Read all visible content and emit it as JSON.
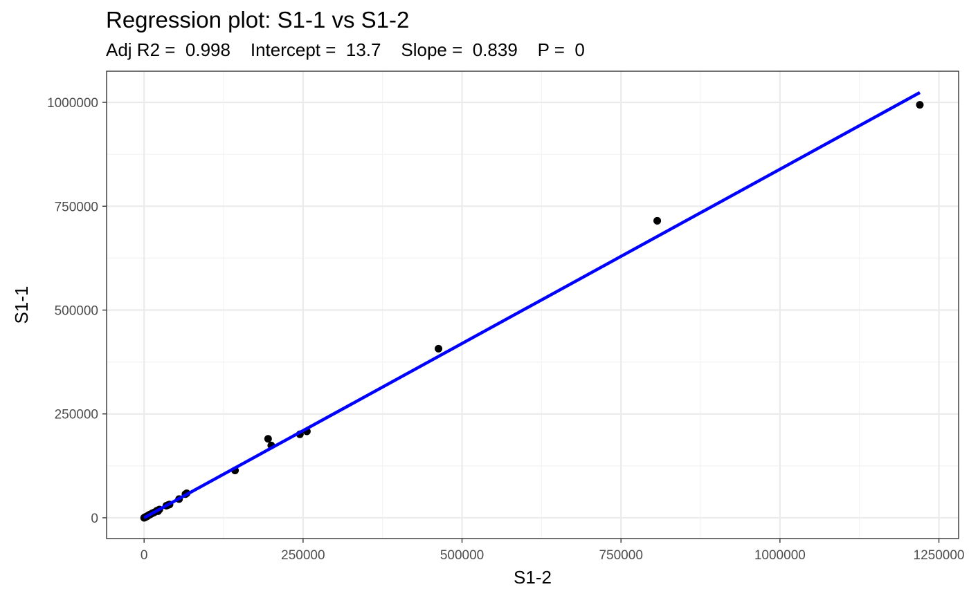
{
  "chart_data": {
    "type": "scatter",
    "title": "Regression plot: S1-1 vs S1-2",
    "subtitle": "Adj R2 =  0.998    Intercept =  13.7    Slope =  0.839    P =  0",
    "stats": {
      "adj_r2": "0.998",
      "intercept": "13.7",
      "slope": "0.839",
      "p": "0"
    },
    "xlabel": "S1-2",
    "ylabel": "S1-1",
    "xlim": [
      -59000,
      1281000
    ],
    "ylim": [
      -50000,
      1075000
    ],
    "xticks": [
      0,
      250000,
      500000,
      750000,
      1000000,
      1250000
    ],
    "yticks": [
      0,
      250000,
      500000,
      750000,
      1000000
    ],
    "xtick_labels": [
      "0",
      "250000",
      "500000",
      "750000",
      "1000000",
      "1250000"
    ],
    "ytick_labels": [
      "0",
      "250000",
      "500000",
      "750000",
      "1000000"
    ],
    "grid": true,
    "regression_line": {
      "intercept": 13.7,
      "slope": 0.839,
      "x_range": [
        0,
        1220000
      ],
      "color": "#0000ff"
    },
    "points": [
      {
        "x": 0,
        "y": 0
      },
      {
        "x": 500,
        "y": 300
      },
      {
        "x": 1000,
        "y": 800
      },
      {
        "x": 2000,
        "y": 1500
      },
      {
        "x": 3000,
        "y": 2500
      },
      {
        "x": 4000,
        "y": 3000
      },
      {
        "x": 5000,
        "y": 4000
      },
      {
        "x": 6000,
        "y": 5000
      },
      {
        "x": 8000,
        "y": 7000
      },
      {
        "x": 10000,
        "y": 8500
      },
      {
        "x": 13000,
        "y": 11000
      },
      {
        "x": 16000,
        "y": 13000
      },
      {
        "x": 20000,
        "y": 17000
      },
      {
        "x": 24000,
        "y": 20000
      },
      {
        "x": 22000,
        "y": 16000
      },
      {
        "x": 35000,
        "y": 29000
      },
      {
        "x": 38000,
        "y": 31000
      },
      {
        "x": 40000,
        "y": 32000
      },
      {
        "x": 55000,
        "y": 45000
      },
      {
        "x": 65000,
        "y": 57000
      },
      {
        "x": 67000,
        "y": 59000
      },
      {
        "x": 143000,
        "y": 114000
      },
      {
        "x": 195000,
        "y": 190000
      },
      {
        "x": 200000,
        "y": 174000
      },
      {
        "x": 245000,
        "y": 201000
      },
      {
        "x": 256000,
        "y": 208000
      },
      {
        "x": 463000,
        "y": 407000
      },
      {
        "x": 807000,
        "y": 715000
      },
      {
        "x": 1220000,
        "y": 994000
      }
    ],
    "point_color": "#000000",
    "panel_border_color": "#333333",
    "grid_major_color": "#ebebeb",
    "grid_minor_color": "#f3f3f3"
  }
}
